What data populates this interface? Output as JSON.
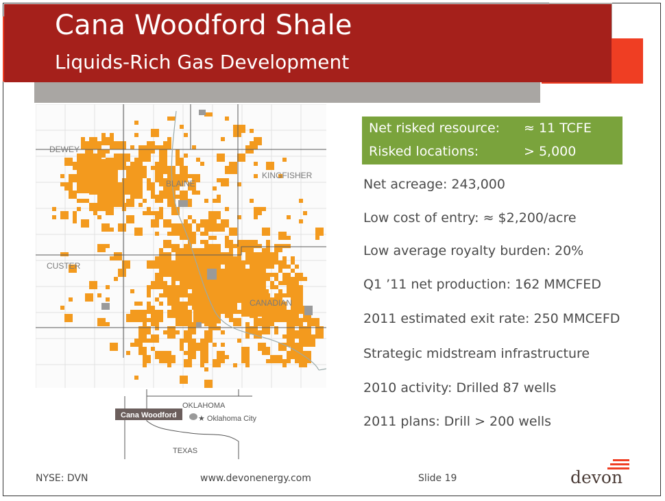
{
  "slide": {
    "title": "Cana Woodford Shale",
    "subtitle": "Liquids-Rich Gas Development"
  },
  "highlight_box": {
    "rows": [
      {
        "label": "Net risked resource:",
        "value": "≈ 11 TCFE"
      },
      {
        "label": "Risked locations:",
        "value": "> 5,000"
      }
    ]
  },
  "bullets": [
    "Net acreage: 243,000",
    "Low cost of entry: ≈ $2,200/acre",
    "Low average royalty burden: 20%",
    "Q1 ’11 net production: 162 MMCFED",
    "2011 estimated exit rate: 250 MMCEFD",
    "Strategic midstream infrastructure",
    "2010 activity: Drilled 87 wells",
    "2011 plans: Drill > 200 wells"
  ],
  "map": {
    "county_labels": [
      "DEWEY",
      "BLAINE",
      "KINGFISHER",
      "CUSTER",
      "CANADIAN"
    ],
    "acreage_color": "#f39a1e"
  },
  "inset_map": {
    "state_label": "OKLAHOMA",
    "neighbor_label": "TEXAS",
    "play_label": "Cana Woodford",
    "city_label": "Oklahoma City"
  },
  "footer": {
    "ticker": "NYSE: DVN",
    "website": "www.devonenergy.com",
    "slide_number": "Slide 19"
  },
  "logo": {
    "text": "devon",
    "accent_color": "#ef3e23"
  },
  "colors": {
    "dark_red": "#a5201b",
    "orange": "#ef3e23",
    "green": "#7aa33c",
    "gray": "#a9a6a3"
  }
}
